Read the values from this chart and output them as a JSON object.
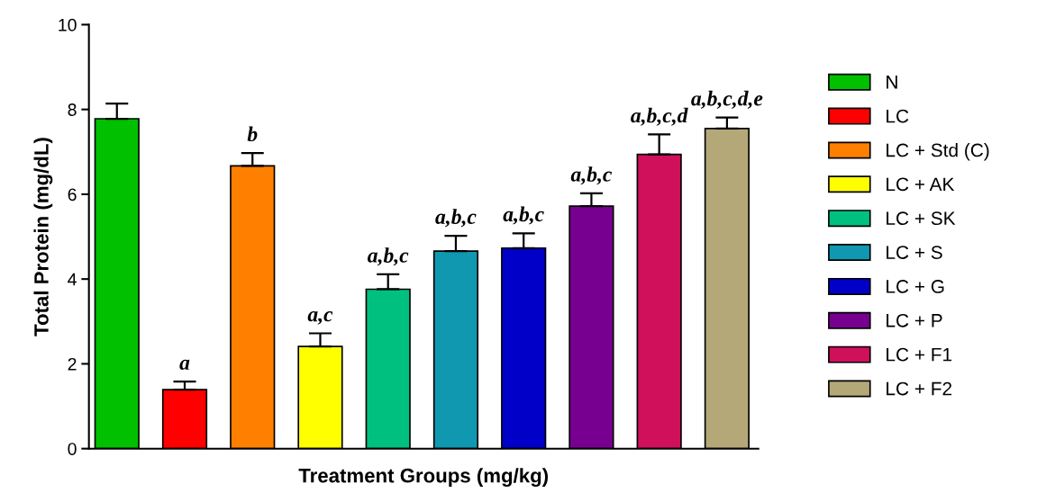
{
  "chart_data": {
    "type": "bar",
    "ylabel": "Total Protein (mg/dL)",
    "xlabel": "Treatment Groups (mg/kg)",
    "categories": [
      null
    ],
    "series": [
      {
        "name": "N",
        "color": "#00c000",
        "values": [
          7.78
        ],
        "errors": [
          0.36
        ]
      },
      {
        "name": "LC",
        "color": "#ff0000",
        "values": [
          1.39
        ],
        "errors": [
          0.19
        ]
      },
      {
        "name": "LC + Std (C)",
        "color": "#ff8000",
        "values": [
          6.67
        ],
        "errors": [
          0.3
        ]
      },
      {
        "name": "LC + AK",
        "color": "#ffff00",
        "values": [
          2.41
        ],
        "errors": [
          0.31
        ]
      },
      {
        "name": "LC + SK",
        "color": "#00c080",
        "values": [
          3.76
        ],
        "errors": [
          0.35
        ]
      },
      {
        "name": "LC + S",
        "color": "#1098b0",
        "values": [
          4.66
        ],
        "errors": [
          0.36
        ]
      },
      {
        "name": "LC + G",
        "color": "#0000c8",
        "values": [
          4.73
        ],
        "errors": [
          0.35
        ]
      },
      {
        "name": "LC + P",
        "color": "#780090",
        "values": [
          5.72
        ],
        "errors": [
          0.3
        ]
      },
      {
        "name": "LC + F1",
        "color": "#d0105a",
        "values": [
          6.94
        ],
        "errors": [
          0.47
        ]
      },
      {
        "name": "LC + F2",
        "color": "#b4a878",
        "values": [
          7.55
        ],
        "errors": [
          0.26
        ]
      }
    ],
    "ylim": [
      0,
      10
    ],
    "yticks": [
      0,
      2,
      4,
      6,
      8,
      10
    ],
    "annotations": [
      {
        "text": "a",
        "y": 1.58
      },
      {
        "text": "b",
        "y": 6.97
      },
      {
        "text": "a,c",
        "y": 2.72
      },
      {
        "text": "a,b,c",
        "y": 4.11
      },
      {
        "text": "a,b,c",
        "y": 5.02
      },
      {
        "text": "a,b,c",
        "y": 5.08
      },
      {
        "text": "a,b,c",
        "y": 6.02
      },
      {
        "text": "a,b,c,d",
        "y": 7.41
      },
      {
        "text": "a,b,c,d,e",
        "y": 7.81
      }
    ],
    "legend": "right",
    "tick_labels": "y",
    "grid": false
  }
}
